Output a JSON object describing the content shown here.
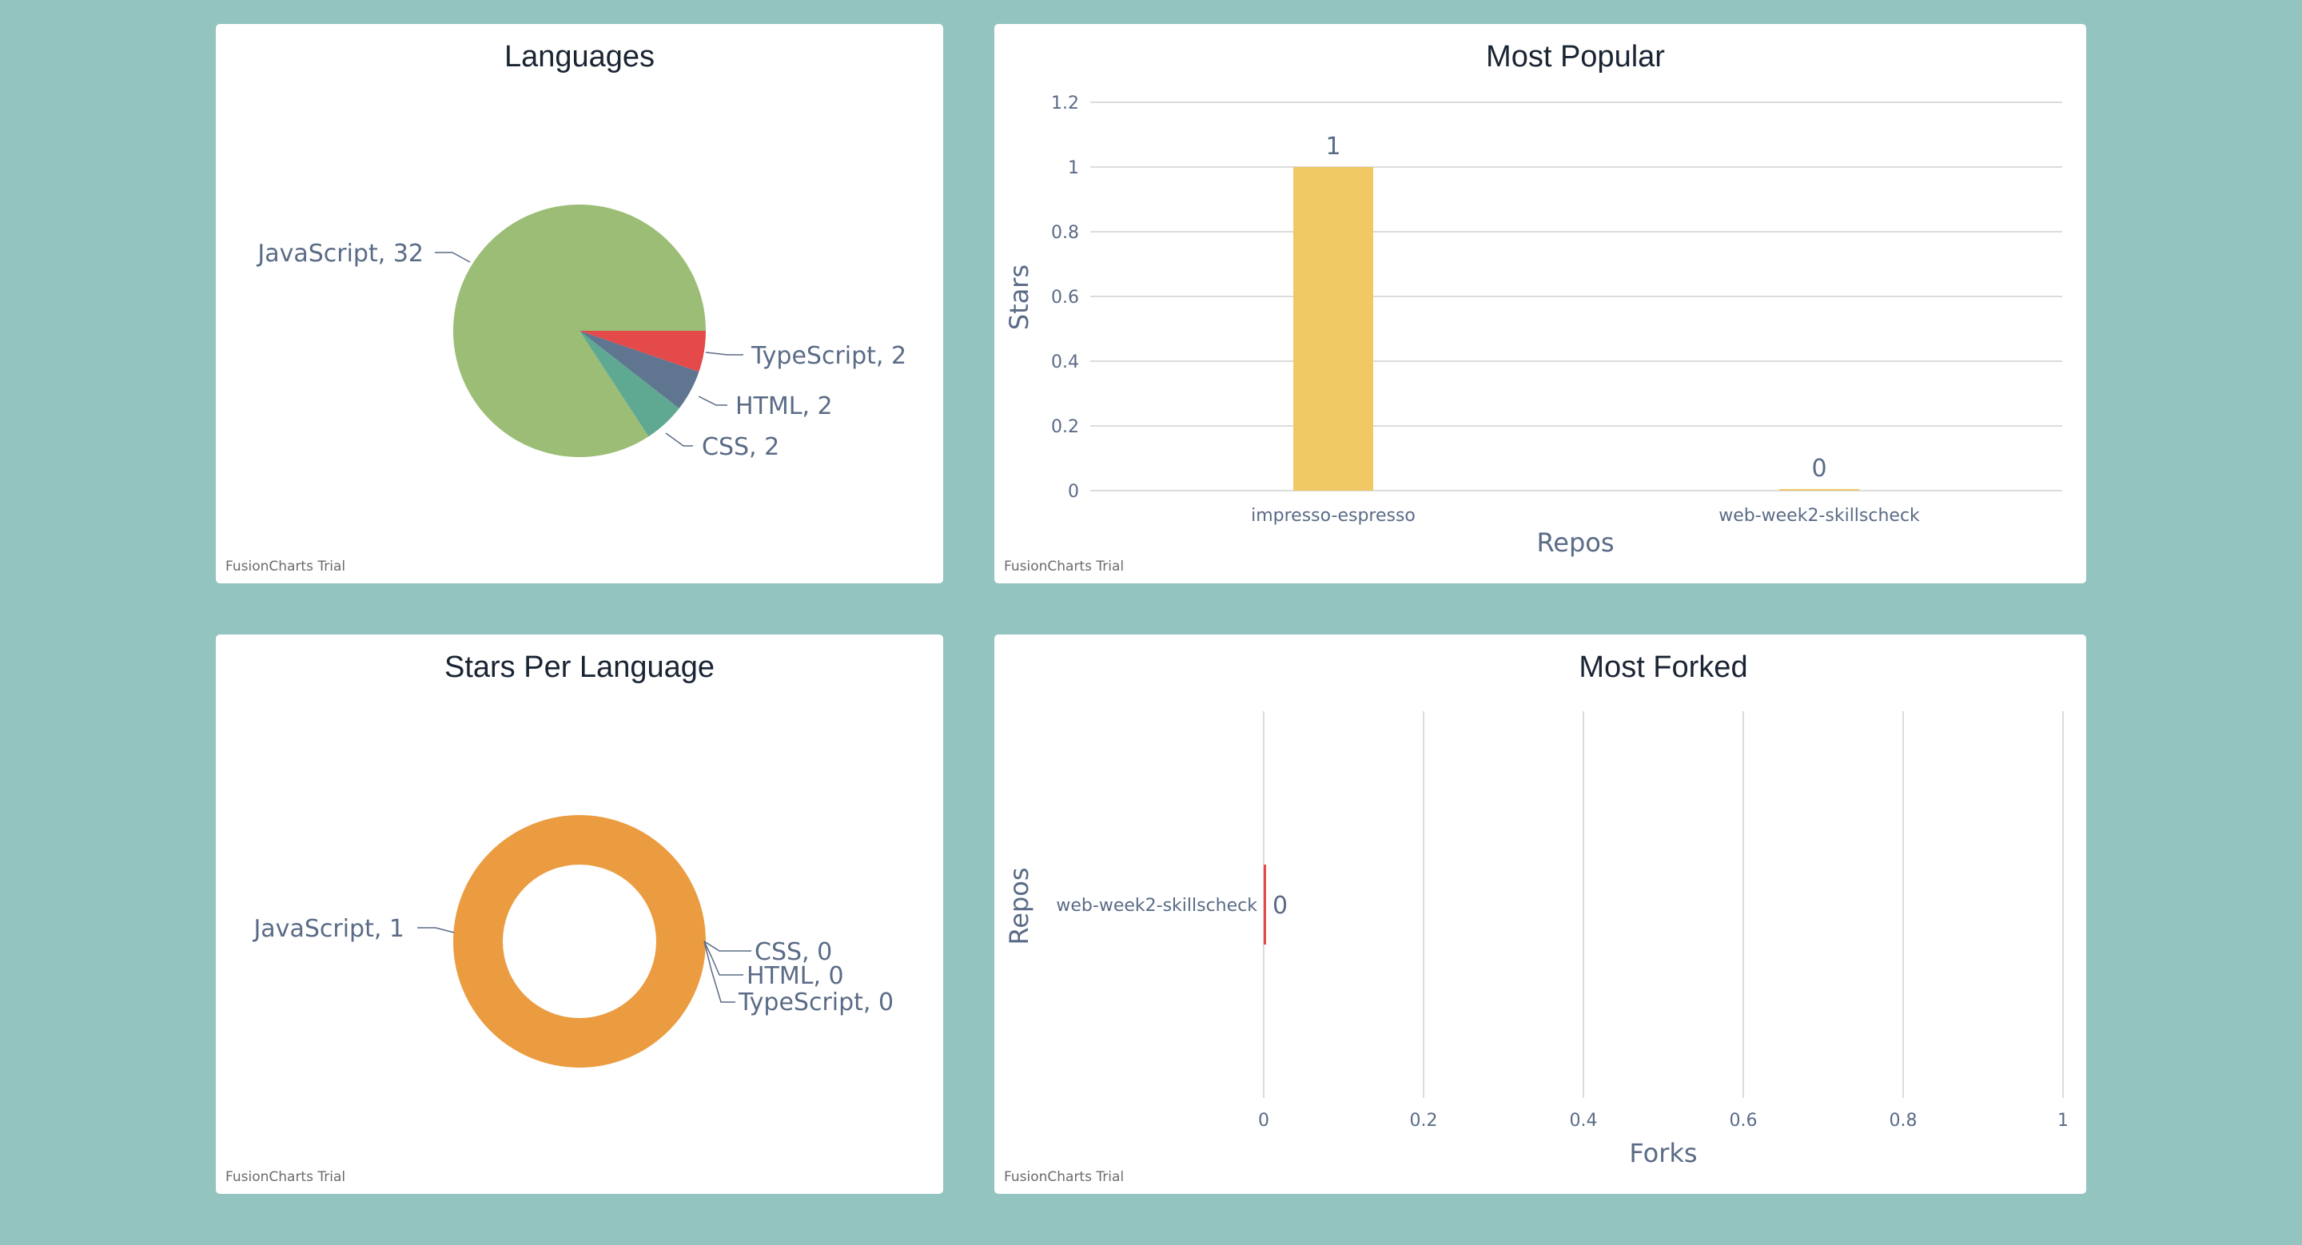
{
  "watermark": "FusionCharts Trial",
  "colors": {
    "background": "#93c4bf",
    "javascript_pie": "#9bbd76",
    "typescript": "#e44a4a",
    "html": "#5f7590",
    "css": "#5fa891",
    "donut": "#eb9b40",
    "bar": "#f0c864",
    "fork_bar": "#e44a4a"
  },
  "chart_data": [
    {
      "type": "pie",
      "title": "Languages",
      "slices": [
        {
          "label": "JavaScript",
          "value": 32,
          "text": "JavaScript, 32"
        },
        {
          "label": "TypeScript",
          "value": 2,
          "text": "TypeScript, 2"
        },
        {
          "label": "HTML",
          "value": 2,
          "text": "HTML, 2"
        },
        {
          "label": "CSS",
          "value": 2,
          "text": "CSS, 2"
        }
      ]
    },
    {
      "type": "bar",
      "title": "Most Popular",
      "categories": [
        "impresso-espresso",
        "web-week2-skillscheck"
      ],
      "values": [
        1,
        0
      ],
      "data_labels": [
        "1",
        "0"
      ],
      "xlabel": "Repos",
      "ylabel": "Stars",
      "ylim": [
        0,
        1.2
      ],
      "yticks": [
        "0",
        "0.2",
        "0.4",
        "0.6",
        "0.8",
        "1",
        "1.2"
      ]
    },
    {
      "type": "pie",
      "title": "Stars Per Language",
      "donut": true,
      "slices": [
        {
          "label": "JavaScript",
          "value": 1,
          "text": "JavaScript, 1"
        },
        {
          "label": "CSS",
          "value": 0,
          "text": "CSS, 0"
        },
        {
          "label": "HTML",
          "value": 0,
          "text": "HTML, 0"
        },
        {
          "label": "TypeScript",
          "value": 0,
          "text": "TypeScript, 0"
        }
      ]
    },
    {
      "type": "bar",
      "orientation": "horizontal",
      "title": "Most Forked",
      "categories": [
        "web-week2-skillscheck"
      ],
      "values": [
        0
      ],
      "data_labels": [
        "0"
      ],
      "xlabel": "Forks",
      "ylabel": "Repos",
      "xlim": [
        0,
        1
      ],
      "xticks": [
        "0",
        "0.2",
        "0.4",
        "0.6",
        "0.8",
        "1"
      ]
    }
  ]
}
